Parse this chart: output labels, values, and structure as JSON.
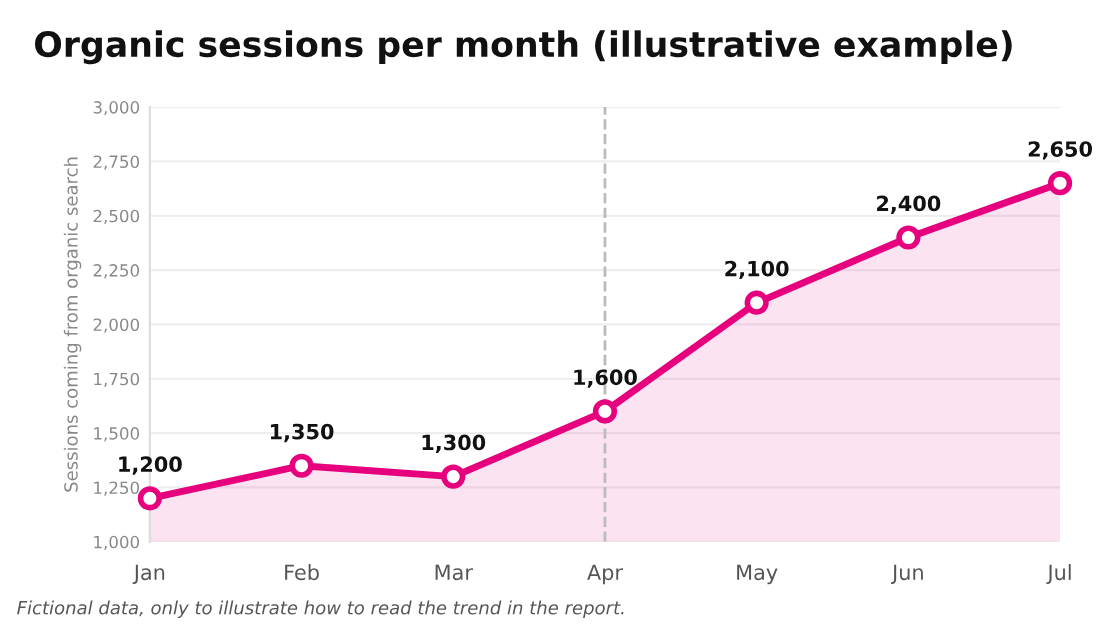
{
  "chart_data": {
    "type": "area",
    "title": "Organic sessions per month (illustrative example)",
    "ylabel": "Sessions coming from organic search",
    "categories": [
      "Jan",
      "Feb",
      "Mar",
      "Apr",
      "May",
      "Jun",
      "Jul"
    ],
    "series": [
      {
        "color": "#e6007e",
        "values": [
          1200,
          1350,
          1300,
          1600,
          2100,
          2400,
          2650
        ],
        "value_labels": [
          "1,200",
          "1,350",
          "1,300",
          "1,600",
          "2,100",
          "2,400",
          "2,650"
        ]
      }
    ],
    "ylim": [
      1000,
      3000
    ],
    "yticks": [
      {
        "value": 1000,
        "label": "1,000"
      },
      {
        "value": 1250,
        "label": "1,250"
      },
      {
        "value": 1500,
        "label": "1,500"
      },
      {
        "value": 1750,
        "label": "1,750"
      },
      {
        "value": 2000,
        "label": "2,000"
      },
      {
        "value": 2250,
        "label": "2,250"
      },
      {
        "value": 2500,
        "label": "2,500"
      },
      {
        "value": 2750,
        "label": "2,750"
      },
      {
        "value": 3000,
        "label": "3,000"
      }
    ],
    "ref_lines": [
      {
        "axis": "x",
        "value": "Apr",
        "color": "#bbbbbb",
        "line_style": "dashed"
      }
    ],
    "grid": "y",
    "marker": "circle",
    "line_style": "solid",
    "annotations": [
      "Fictional data, only to illustrate how to read the trend in the report."
    ]
  }
}
